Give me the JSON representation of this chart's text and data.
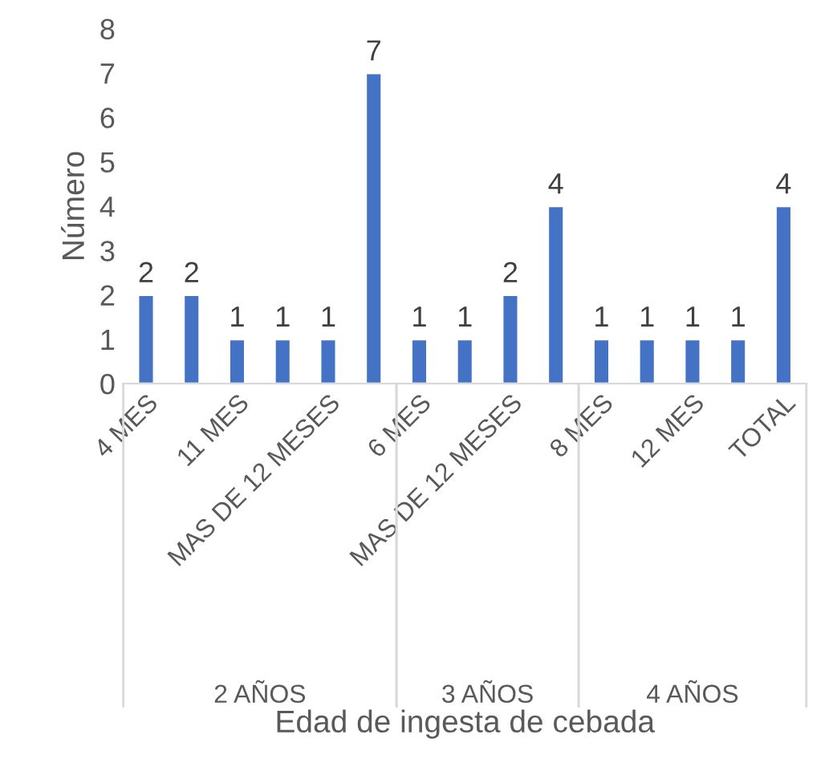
{
  "chart_data": {
    "type": "bar",
    "xlabel": "Edad de ingesta de cebada",
    "ylabel": "Número",
    "categories": [
      "4 MES",
      null,
      "11 MES",
      null,
      "MAS DE 12 MESES",
      null,
      "6 MES",
      null,
      "MAS DE 12 MESES",
      null,
      "8 MES",
      null,
      "12 MES",
      null,
      "TOTAL"
    ],
    "values": [
      2,
      2,
      1,
      1,
      1,
      7,
      1,
      1,
      2,
      4,
      1,
      1,
      1,
      1,
      4
    ],
    "color": "#4472c4",
    "ylim": [
      0,
      8
    ],
    "yticks": [
      0,
      1,
      2,
      3,
      4,
      5,
      6,
      7,
      8
    ],
    "data_labels": true,
    "grid": false,
    "legend": false,
    "annotations": [
      "2 AÑOS",
      "3 AÑOS",
      "4 AÑOS"
    ]
  }
}
